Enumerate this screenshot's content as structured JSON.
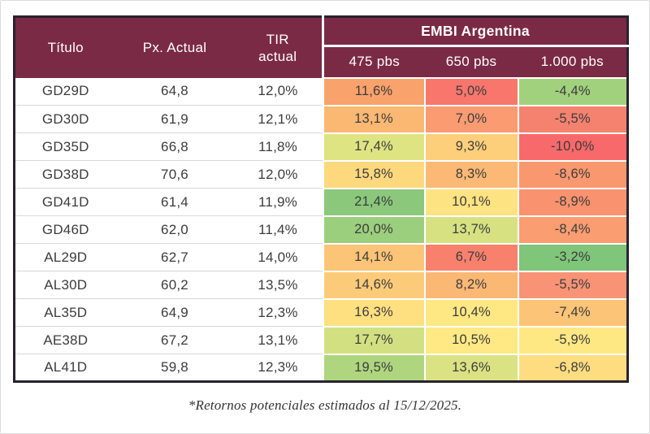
{
  "chart_data": {
    "type": "table",
    "title": "EMBI Argentina",
    "header": {
      "titulo": "Título",
      "px_actual": "Px. Actual",
      "tir_actual": "TIR actual",
      "embi_group": "EMBI Argentina",
      "scenarios": [
        "475 pbs",
        "650 pbs",
        "1.000 pbs"
      ]
    },
    "columns": [
      "Título",
      "Px. Actual",
      "TIR actual",
      "475 pbs",
      "650 pbs",
      "1.000 pbs"
    ],
    "rows": [
      {
        "titulo": "GD29D",
        "px_actual": "64,8",
        "tir_actual": "12,0%",
        "embi": [
          {
            "value": "11,6%",
            "color": "#F9A26B"
          },
          {
            "value": "5,0%",
            "color": "#F8766C"
          },
          {
            "value": "-4,4%",
            "color": "#A2D17E"
          }
        ]
      },
      {
        "titulo": "GD30D",
        "px_actual": "61,9",
        "tir_actual": "12,1%",
        "embi": [
          {
            "value": "13,1%",
            "color": "#FBB872"
          },
          {
            "value": "7,0%",
            "color": "#FA9B72"
          },
          {
            "value": "-5,5%",
            "color": "#F5826F"
          }
        ]
      },
      {
        "titulo": "GD35D",
        "px_actual": "66,8",
        "tir_actual": "11,8%",
        "embi": [
          {
            "value": "17,4%",
            "color": "#DFE483"
          },
          {
            "value": "9,3%",
            "color": "#FDCF7B"
          },
          {
            "value": "-10,0%",
            "color": "#F8696B"
          }
        ]
      },
      {
        "titulo": "GD38D",
        "px_actual": "70,6",
        "tir_actual": "12,0%",
        "embi": [
          {
            "value": "15,8%",
            "color": "#FDD87D"
          },
          {
            "value": "8,3%",
            "color": "#FBB975"
          },
          {
            "value": "-8,6%",
            "color": "#F9986F"
          }
        ]
      },
      {
        "titulo": "GD41D",
        "px_actual": "61,4",
        "tir_actual": "11,9%",
        "embi": [
          {
            "value": "21,4%",
            "color": "#8BC87B"
          },
          {
            "value": "10,1%",
            "color": "#FEE383"
          },
          {
            "value": "-8,9%",
            "color": "#F9926E"
          }
        ]
      },
      {
        "titulo": "GD46D",
        "px_actual": "62,0",
        "tir_actual": "11,4%",
        "embi": [
          {
            "value": "20,0%",
            "color": "#9CCF7D"
          },
          {
            "value": "13,7%",
            "color": "#D8E182"
          },
          {
            "value": "-8,4%",
            "color": "#FA9D71"
          }
        ]
      },
      {
        "titulo": "AL29D",
        "px_actual": "62,7",
        "tir_actual": "14,0%",
        "embi": [
          {
            "value": "14,1%",
            "color": "#FCC477"
          },
          {
            "value": "6,7%",
            "color": "#F8816E"
          },
          {
            "value": "-3,2%",
            "color": "#7FC57A"
          }
        ]
      },
      {
        "titulo": "AL30D",
        "px_actual": "60,2",
        "tir_actual": "13,5%",
        "embi": [
          {
            "value": "14,6%",
            "color": "#FCCB79"
          },
          {
            "value": "8,2%",
            "color": "#FBB774"
          },
          {
            "value": "-5,5%",
            "color": "#F99376"
          }
        ]
      },
      {
        "titulo": "AL35D",
        "px_actual": "64,9",
        "tir_actual": "12,3%",
        "embi": [
          {
            "value": "16,3%",
            "color": "#FEE081"
          },
          {
            "value": "10,4%",
            "color": "#FEE884"
          },
          {
            "value": "-7,4%",
            "color": "#FCC477"
          }
        ]
      },
      {
        "titulo": "AE38D",
        "px_actual": "67,2",
        "tir_actual": "13,1%",
        "embi": [
          {
            "value": "17,7%",
            "color": "#D3E082"
          },
          {
            "value": "10,5%",
            "color": "#FEE985"
          },
          {
            "value": "-5,9%",
            "color": "#FEE884"
          }
        ]
      },
      {
        "titulo": "AL41D",
        "px_actual": "59,8",
        "tir_actual": "12,3%",
        "embi": [
          {
            "value": "19,5%",
            "color": "#AFD67F"
          },
          {
            "value": "13,6%",
            "color": "#DBE283"
          },
          {
            "value": "-6,8%",
            "color": "#FEDC80"
          }
        ]
      }
    ],
    "footnote": "*Retornos potenciales estimados al 15/12/2025."
  },
  "colors": {
    "header_bg": "#7B2A46",
    "table_border": "#29222E",
    "body_text": "#3C3C3C",
    "row_divider": "#D8D8D8",
    "page_bg": "#FFFFFF",
    "heat_red": "#F8696B",
    "heat_yellow": "#FFEB84",
    "heat_green": "#63BE7B"
  }
}
